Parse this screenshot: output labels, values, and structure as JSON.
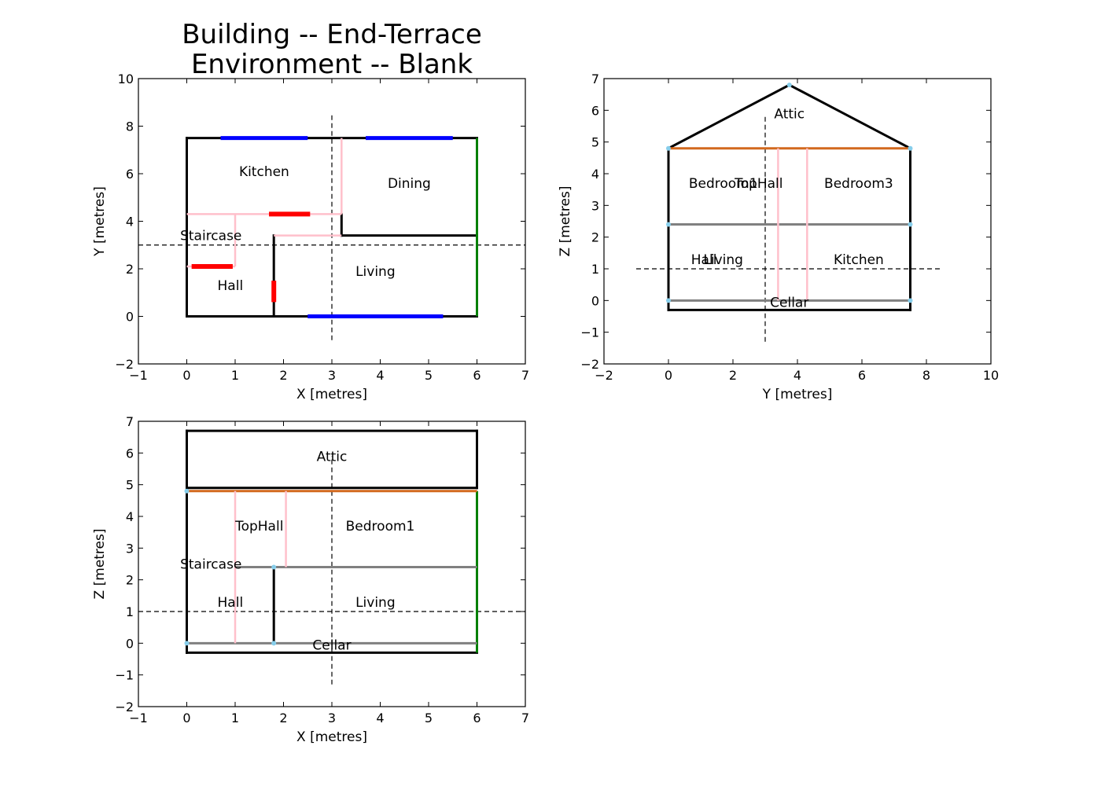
{
  "title_lines": [
    "Building -- End-Terrace",
    "Environment -- Blank"
  ],
  "colors": {
    "wall": "#000000",
    "window": "#0000ff",
    "door": "#ff0000",
    "internal_partition": "#ffc0cb",
    "party_wall": "#008000",
    "floor": "#808080",
    "ceiling_loft": "#d2691e",
    "node": "#87ceeb"
  },
  "chart_data": [
    {
      "type": "diagram",
      "view": "plan",
      "xlabel": "X [metres]",
      "ylabel": "Y [metres]",
      "xlim": [
        -1,
        7
      ],
      "ylim": [
        -2,
        10
      ],
      "xticks": [
        -1,
        0,
        1,
        2,
        3,
        4,
        5,
        6,
        7
      ],
      "yticks": [
        -2,
        0,
        2,
        4,
        6,
        8,
        10
      ],
      "section_lines": [
        {
          "x": [
            3,
            3
          ],
          "y": [
            -1,
            8.5
          ]
        },
        {
          "x": [
            -1,
            7
          ],
          "y": [
            3,
            3
          ]
        }
      ],
      "segments": [
        {
          "kind": "wall",
          "x": [
            0,
            0
          ],
          "y": [
            0,
            7.5
          ]
        },
        {
          "kind": "wall",
          "x": [
            0,
            6
          ],
          "y": [
            0,
            0
          ]
        },
        {
          "kind": "wall",
          "x": [
            0,
            6
          ],
          "y": [
            7.5,
            7.5
          ]
        },
        {
          "kind": "wall",
          "x": [
            3.2,
            6
          ],
          "y": [
            3.4,
            3.4
          ]
        },
        {
          "kind": "wall",
          "x": [
            3.2,
            3.2
          ],
          "y": [
            3.4,
            4.3
          ]
        },
        {
          "kind": "wall",
          "x": [
            1.8,
            1.8
          ],
          "y": [
            0,
            3.4
          ]
        },
        {
          "kind": "internal_partition",
          "x": [
            0,
            3.2
          ],
          "y": [
            4.3,
            4.3
          ]
        },
        {
          "kind": "internal_partition",
          "x": [
            3.2,
            3.2
          ],
          "y": [
            4.3,
            7.5
          ]
        },
        {
          "kind": "internal_partition",
          "x": [
            1.8,
            3.2
          ],
          "y": [
            3.4,
            3.4
          ]
        },
        {
          "kind": "internal_partition",
          "x": [
            1.0,
            1.0
          ],
          "y": [
            2.1,
            4.3
          ]
        },
        {
          "kind": "internal_partition",
          "x": [
            0,
            1.0
          ],
          "y": [
            2.1,
            2.1
          ]
        },
        {
          "kind": "party_wall",
          "x": [
            6,
            6
          ],
          "y": [
            0,
            7.5
          ]
        },
        {
          "kind": "window",
          "x": [
            0.7,
            2.5
          ],
          "y": [
            7.5,
            7.5
          ]
        },
        {
          "kind": "window",
          "x": [
            3.7,
            5.5
          ],
          "y": [
            7.5,
            7.5
          ]
        },
        {
          "kind": "window",
          "x": [
            2.5,
            5.3
          ],
          "y": [
            0,
            0
          ]
        },
        {
          "kind": "door",
          "x": [
            1.7,
            2.55
          ],
          "y": [
            4.3,
            4.3
          ]
        },
        {
          "kind": "door",
          "x": [
            0.1,
            0.95
          ],
          "y": [
            2.1,
            2.1
          ]
        },
        {
          "kind": "door",
          "x": [
            1.8,
            1.8
          ],
          "y": [
            0.6,
            1.5
          ]
        }
      ],
      "labels": [
        {
          "text": "Kitchen",
          "x": 1.6,
          "y": 6.1
        },
        {
          "text": "Dining",
          "x": 4.6,
          "y": 5.6
        },
        {
          "text": "Staircase",
          "x": 0.5,
          "y": 3.4
        },
        {
          "text": "Hall",
          "x": 0.9,
          "y": 1.3
        },
        {
          "text": "Living",
          "x": 3.9,
          "y": 1.9
        }
      ]
    },
    {
      "type": "diagram",
      "view": "side-section",
      "xlabel": "Y [metres]",
      "ylabel": "Z [metres]",
      "xlim": [
        -2,
        10
      ],
      "ylim": [
        -2,
        7
      ],
      "xticks": [
        -2,
        0,
        2,
        4,
        6,
        8,
        10
      ],
      "yticks": [
        -2,
        -1,
        0,
        1,
        2,
        3,
        4,
        5,
        6,
        7
      ],
      "section_lines": [
        {
          "x": [
            3,
            3
          ],
          "y": [
            -1.3,
            5.8
          ]
        },
        {
          "x": [
            -1,
            8.5
          ],
          "y": [
            1,
            1
          ]
        }
      ],
      "segments": [
        {
          "kind": "wall",
          "x": [
            0,
            0
          ],
          "y": [
            -0.3,
            4.8
          ]
        },
        {
          "kind": "wall",
          "x": [
            7.5,
            7.5
          ],
          "y": [
            -0.3,
            4.8
          ]
        },
        {
          "kind": "wall",
          "x": [
            0,
            7.5
          ],
          "y": [
            -0.3,
            -0.3
          ]
        },
        {
          "kind": "wall",
          "x": [
            0,
            3.75
          ],
          "y": [
            4.8,
            6.8
          ]
        },
        {
          "kind": "wall",
          "x": [
            3.75,
            7.5
          ],
          "y": [
            6.8,
            4.8
          ]
        },
        {
          "kind": "ceiling_loft",
          "x": [
            0,
            7.5
          ],
          "y": [
            4.8,
            4.8
          ]
        },
        {
          "kind": "floor",
          "x": [
            0,
            7.5
          ],
          "y": [
            2.4,
            2.4
          ]
        },
        {
          "kind": "floor",
          "x": [
            0,
            7.5
          ],
          "y": [
            0,
            0
          ]
        },
        {
          "kind": "internal_partition",
          "x": [
            3.4,
            3.4
          ],
          "y": [
            0,
            4.8
          ]
        },
        {
          "kind": "internal_partition",
          "x": [
            4.3,
            4.3
          ],
          "y": [
            0,
            4.8
          ]
        }
      ],
      "nodes": [
        {
          "x": 0,
          "y": 4.8
        },
        {
          "x": 7.5,
          "y": 4.8
        },
        {
          "x": 3.75,
          "y": 6.8
        },
        {
          "x": 0,
          "y": 2.4
        },
        {
          "x": 7.5,
          "y": 2.4
        },
        {
          "x": 0,
          "y": 0
        },
        {
          "x": 7.5,
          "y": 0
        }
      ],
      "labels": [
        {
          "text": "Attic",
          "x": 3.75,
          "y": 5.9
        },
        {
          "text": "Bedroom1",
          "x": 1.7,
          "y": 3.7
        },
        {
          "text": "TopHall",
          "x": 2.8,
          "y": 3.7
        },
        {
          "text": "Bedroom3",
          "x": 5.9,
          "y": 3.7
        },
        {
          "text": "Hall",
          "x": 1.1,
          "y": 1.3
        },
        {
          "text": "Living",
          "x": 1.7,
          "y": 1.3
        },
        {
          "text": "Kitchen",
          "x": 5.9,
          "y": 1.3
        },
        {
          "text": "Cellar",
          "x": 3.75,
          "y": -0.05
        }
      ]
    },
    {
      "type": "diagram",
      "view": "front-section",
      "xlabel": "X [metres]",
      "ylabel": "Z [metres]",
      "xlim": [
        -1,
        7
      ],
      "ylim": [
        -2,
        7
      ],
      "xticks": [
        -1,
        0,
        1,
        2,
        3,
        4,
        5,
        6,
        7
      ],
      "yticks": [
        -2,
        -1,
        0,
        1,
        2,
        3,
        4,
        5,
        6,
        7
      ],
      "section_lines": [
        {
          "x": [
            3,
            3
          ],
          "y": [
            -1.3,
            5.9
          ]
        },
        {
          "x": [
            -1,
            7
          ],
          "y": [
            1,
            1
          ]
        }
      ],
      "segments": [
        {
          "kind": "wall",
          "x": [
            0,
            0
          ],
          "y": [
            -0.3,
            6.7
          ]
        },
        {
          "kind": "wall",
          "x": [
            0,
            6
          ],
          "y": [
            -0.3,
            -0.3
          ]
        },
        {
          "kind": "wall",
          "x": [
            0,
            6
          ],
          "y": [
            6.7,
            6.7
          ]
        },
        {
          "kind": "wall",
          "x": [
            6,
            6
          ],
          "y": [
            4.9,
            6.7
          ]
        },
        {
          "kind": "wall",
          "x": [
            0,
            6
          ],
          "y": [
            4.9,
            4.9
          ]
        },
        {
          "kind": "wall",
          "x": [
            1.8,
            1.8
          ],
          "y": [
            0,
            2.4
          ]
        },
        {
          "kind": "party_wall",
          "x": [
            6,
            6
          ],
          "y": [
            -0.3,
            4.8
          ]
        },
        {
          "kind": "ceiling_loft",
          "x": [
            0,
            6
          ],
          "y": [
            4.8,
            4.8
          ]
        },
        {
          "kind": "floor",
          "x": [
            1.0,
            6
          ],
          "y": [
            2.4,
            2.4
          ]
        },
        {
          "kind": "floor",
          "x": [
            0,
            6
          ],
          "y": [
            0,
            0
          ]
        },
        {
          "kind": "internal_partition",
          "x": [
            1.0,
            1.0
          ],
          "y": [
            0,
            4.8
          ]
        },
        {
          "kind": "internal_partition",
          "x": [
            2.05,
            2.05
          ],
          "y": [
            2.4,
            4.8
          ]
        }
      ],
      "nodes": [
        {
          "x": 0,
          "y": 4.8
        },
        {
          "x": 0,
          "y": 0
        },
        {
          "x": 1.8,
          "y": 2.4
        },
        {
          "x": 1.8,
          "y": 0
        }
      ],
      "labels": [
        {
          "text": "Attic",
          "x": 3.0,
          "y": 5.9
        },
        {
          "text": "TopHall",
          "x": 1.5,
          "y": 3.7
        },
        {
          "text": "Bedroom1",
          "x": 4.0,
          "y": 3.7
        },
        {
          "text": "Staircase",
          "x": 0.5,
          "y": 2.5
        },
        {
          "text": "Hall",
          "x": 0.9,
          "y": 1.3
        },
        {
          "text": "Living",
          "x": 3.9,
          "y": 1.3
        },
        {
          "text": "Cellar",
          "x": 3.0,
          "y": -0.05
        }
      ]
    }
  ]
}
